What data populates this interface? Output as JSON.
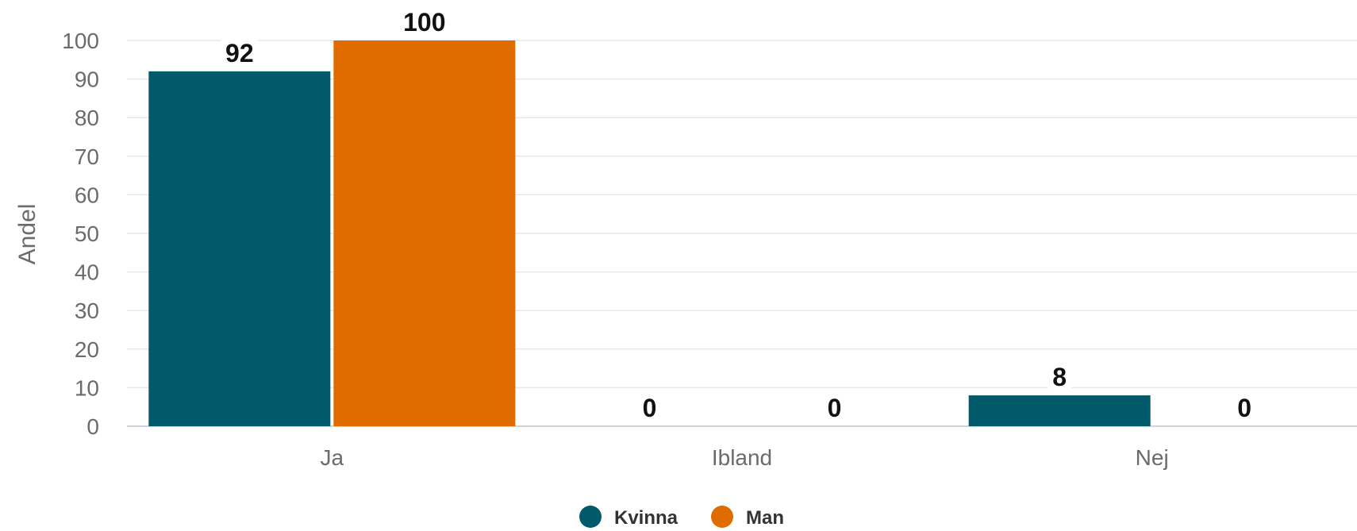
{
  "chart_data": {
    "type": "bar",
    "categories": [
      "Ja",
      "Ibland",
      "Nej"
    ],
    "series": [
      {
        "name": "Kvinna",
        "color": "#005a6a",
        "values": [
          92,
          0,
          8
        ]
      },
      {
        "name": "Man",
        "color": "#e06c00",
        "values": [
          100,
          0,
          0
        ]
      }
    ],
    "ylabel": "Andel",
    "ylim": [
      0,
      100
    ],
    "yticks": [
      0,
      10,
      20,
      30,
      40,
      50,
      60,
      70,
      80,
      90,
      100
    ],
    "grid": true,
    "legend_position": "bottom-center",
    "data_labels": true
  }
}
